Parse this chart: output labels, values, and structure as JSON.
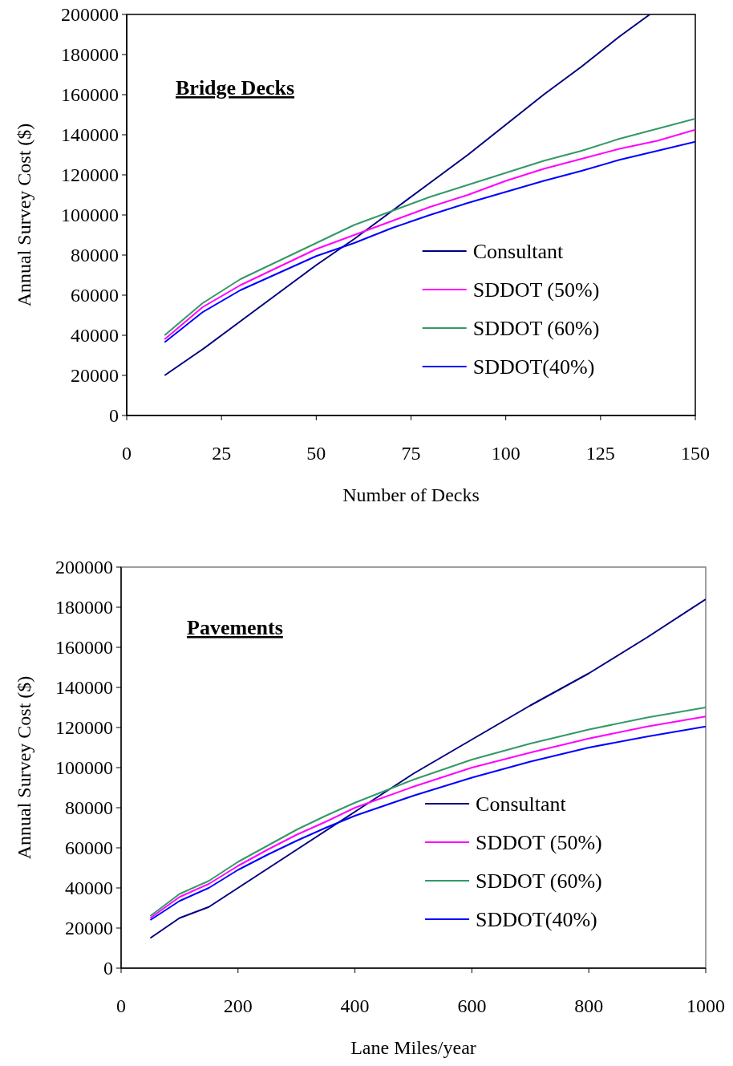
{
  "chart_data": [
    {
      "type": "line",
      "title": "Bridge Decks",
      "xlabel": "Number of Decks",
      "ylabel": "Annual Survey Cost ($)",
      "xlim": [
        0,
        150
      ],
      "xticks": [
        0,
        25,
        50,
        75,
        100,
        125,
        150
      ],
      "ylim": [
        0,
        200000
      ],
      "yticks": [
        0,
        20000,
        40000,
        60000,
        80000,
        100000,
        120000,
        140000,
        160000,
        180000,
        200000
      ],
      "grid": false,
      "legend": "bottom right",
      "marker": "none",
      "line_style": "solid",
      "series": [
        {
          "name": "Consultant",
          "color": "#000080",
          "x": [
            10,
            20,
            30,
            40,
            50,
            60,
            70,
            80,
            90,
            100,
            110,
            120,
            130,
            138
          ],
          "values": [
            20000,
            33000,
            47000,
            61000,
            75000,
            88000,
            102000,
            116000,
            130000,
            145000,
            160000,
            174000,
            189000,
            200000
          ]
        },
        {
          "name": "SDDOT (50%)",
          "color": "#ff00ff",
          "x": [
            10,
            20,
            30,
            40,
            50,
            60,
            70,
            80,
            90,
            100,
            110,
            120,
            130,
            140,
            150
          ],
          "values": [
            38000,
            54000,
            65000,
            74000,
            83000,
            90000,
            97000,
            104000,
            110000,
            117000,
            123000,
            128000,
            133000,
            137000,
            142500
          ]
        },
        {
          "name": "SDDOT (60%)",
          "color": "#339966",
          "x": [
            10,
            20,
            30,
            40,
            50,
            60,
            70,
            80,
            90,
            100,
            110,
            120,
            130,
            140,
            150
          ],
          "values": [
            40000,
            56000,
            68000,
            77000,
            86000,
            95000,
            102000,
            109000,
            115000,
            121000,
            127000,
            132000,
            138000,
            143000,
            148000
          ]
        },
        {
          "name": "SDDOT(40%)",
          "color": "#0000ff",
          "x": [
            10,
            20,
            30,
            40,
            50,
            60,
            70,
            80,
            90,
            100,
            110,
            120,
            130,
            140,
            150
          ],
          "values": [
            36500,
            51500,
            62500,
            71000,
            79500,
            86000,
            93500,
            100000,
            106000,
            111500,
            117000,
            122000,
            127500,
            132000,
            136500
          ]
        }
      ]
    },
    {
      "type": "line",
      "title": "Pavements",
      "xlabel": "Lane Miles/year",
      "ylabel": "Annual Survey Cost ($)",
      "xlim": [
        0,
        1000
      ],
      "xticks": [
        0,
        200,
        400,
        600,
        800,
        1000
      ],
      "ylim": [
        0,
        200000
      ],
      "yticks": [
        0,
        20000,
        40000,
        60000,
        80000,
        100000,
        120000,
        140000,
        160000,
        180000,
        200000
      ],
      "grid": false,
      "legend": "bottom right",
      "marker": "none",
      "line_style": "solid",
      "series": [
        {
          "name": "Consultant",
          "color": "#000080",
          "x": [
            50,
            100,
            150,
            200,
            300,
            400,
            500,
            600,
            700,
            800,
            900,
            1000
          ],
          "values": [
            15000,
            25000,
            30500,
            40000,
            59000,
            78000,
            97000,
            114000,
            131000,
            147000,
            165000,
            184000
          ]
        },
        {
          "name": "SDDOT (50%)",
          "color": "#ff00ff",
          "x": [
            50,
            100,
            150,
            200,
            250,
            300,
            350,
            400,
            500,
            600,
            700,
            800,
            900,
            1000
          ],
          "values": [
            25000,
            35500,
            42000,
            51000,
            59000,
            66500,
            73000,
            80000,
            90500,
            100000,
            107500,
            114500,
            120500,
            125500
          ]
        },
        {
          "name": "SDDOT (60%)",
          "color": "#339966",
          "x": [
            50,
            100,
            150,
            200,
            250,
            300,
            350,
            400,
            500,
            600,
            700,
            800,
            900,
            1000
          ],
          "values": [
            26000,
            37000,
            43500,
            53000,
            61000,
            69000,
            76000,
            82500,
            94000,
            104000,
            112000,
            119000,
            125000,
            130000
          ]
        },
        {
          "name": "SDDOT(40%)",
          "color": "#0000ff",
          "x": [
            50,
            100,
            150,
            200,
            250,
            300,
            350,
            400,
            500,
            600,
            700,
            800,
            900,
            1000
          ],
          "values": [
            24000,
            33500,
            40000,
            49000,
            56500,
            63500,
            70000,
            76000,
            86000,
            95000,
            103000,
            110000,
            115500,
            120500
          ]
        }
      ]
    }
  ]
}
